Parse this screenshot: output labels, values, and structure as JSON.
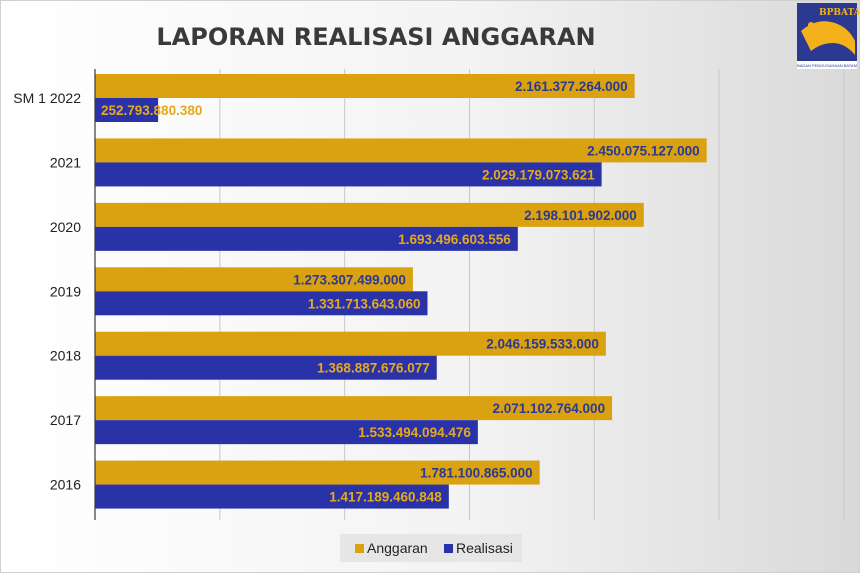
{
  "chart_data": {
    "type": "bar",
    "orientation": "horizontal",
    "title": "LAPORAN REALISASI ANGGARAN",
    "categories": [
      "SM 1 2022",
      "2021",
      "2020",
      "2019",
      "2018",
      "2017",
      "2016"
    ],
    "series": [
      {
        "name": "Anggaran",
        "color": "#daa111",
        "label_color": "#2b3990",
        "values": [
          2161377264000,
          2450075127000,
          2198101902000,
          1273307499000,
          2046159533000,
          2071102764000,
          1781100865000
        ],
        "labels": [
          "2.161.377.264.000",
          "2.450.075.127.000",
          "2.198.101.902.000",
          "1.273.307.499.000",
          "2.046.159.533.000",
          "2.071.102.764.000",
          "1.781.100.865.000"
        ]
      },
      {
        "name": "Realisasi",
        "color": "#2a32a8",
        "label_color": "#e5a91f",
        "values": [
          252793880380,
          2029179073621,
          1693496603556,
          1331713643060,
          1368887676077,
          1533494094476,
          1417189460848
        ],
        "labels": [
          "252.793.880.380",
          "2.029.179.073.621",
          "1.693.496.603.556",
          "1.331.713.643.060",
          "1.368.887.676.077",
          "1.533.494.094.476",
          "1.417.189.460.848"
        ]
      }
    ],
    "xlim": [
      0,
      3000000000000
    ],
    "grid": true,
    "legend_position": "bottom"
  },
  "logo": {
    "name": "bp-batam-logo-icon",
    "text": "BPBATAM",
    "subtext": "BADAN PENGUSAHAAN BATAM",
    "colors": {
      "blue": "#2b3990",
      "gold": "#f3b21b"
    }
  }
}
